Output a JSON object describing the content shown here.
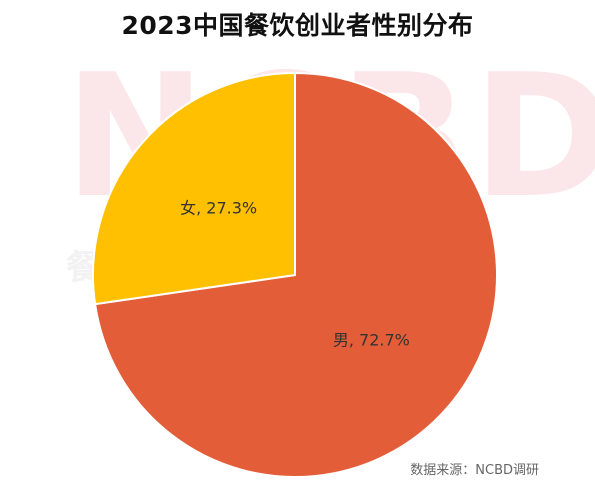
{
  "chart_data": {
    "type": "pie",
    "title": "2023中国餐饮创业者性别分布",
    "slices": [
      {
        "label": "男",
        "value": 72.7,
        "display": "男, 72.7%",
        "color": "#E35E38"
      },
      {
        "label": "女",
        "value": 27.3,
        "display": "女, 27.3%",
        "color": "#FEC000"
      }
    ],
    "start_angle_deg": 0,
    "direction": "clockwise",
    "border_color": "#ffffff"
  },
  "watermark": {
    "logo_text": "NCBD",
    "tagline": "餐宝典"
  },
  "source_note": "数据来源：NCBD调研"
}
